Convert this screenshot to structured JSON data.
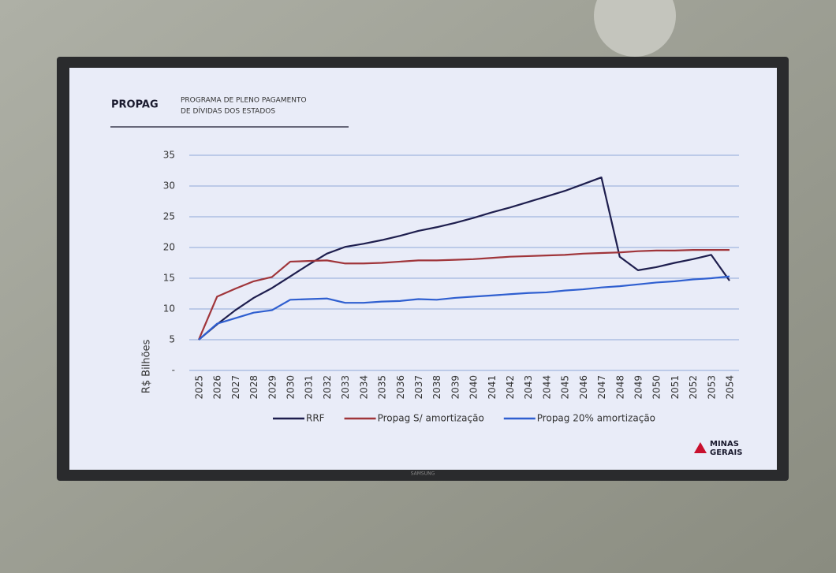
{
  "chart_data": {
    "type": "line",
    "title": "PROPAG",
    "subtitle": [
      "PROGRAMA DE PLENO PAGAMENTO",
      "DE DÍVIDAS DOS ESTADOS"
    ],
    "ylabel": "R$ Bilhões",
    "categories": [
      "2025",
      "2026",
      "2027",
      "2028",
      "2029",
      "2030",
      "2031",
      "2032",
      "2033",
      "2034",
      "2035",
      "2036",
      "2037",
      "2038",
      "2039",
      "2040",
      "2041",
      "2042",
      "2043",
      "2044",
      "2045",
      "2046",
      "2047",
      "2048",
      "2049",
      "2050",
      "2051",
      "2052",
      "2053",
      "2054"
    ],
    "series": [
      {
        "name": "RRF",
        "color": "#1e1e4e",
        "values": [
          5.0,
          7.5,
          9.8,
          11.8,
          13.4,
          15.3,
          17.2,
          19.0,
          20.1,
          20.6,
          21.2,
          21.9,
          22.7,
          23.3,
          24.0,
          24.8,
          25.7,
          26.5,
          27.4,
          28.3,
          29.2,
          30.3,
          31.4,
          18.5,
          16.3,
          16.8,
          17.5,
          18.1,
          18.8,
          14.6
        ]
      },
      {
        "name": "Propag S/ amortização",
        "color": "#a0353a",
        "values": [
          5.0,
          12.0,
          13.3,
          14.5,
          15.2,
          17.7,
          17.8,
          17.9,
          17.4,
          17.4,
          17.5,
          17.7,
          17.9,
          17.9,
          18.0,
          18.1,
          18.3,
          18.5,
          18.6,
          18.7,
          18.8,
          19.0,
          19.1,
          19.2,
          19.4,
          19.5,
          19.5,
          19.6,
          19.6,
          19.6
        ]
      },
      {
        "name": "Propag 20% amortização",
        "color": "#2f5fd0",
        "values": [
          5.0,
          7.6,
          8.5,
          9.4,
          9.8,
          11.5,
          11.6,
          11.7,
          11.0,
          11.0,
          11.2,
          11.3,
          11.6,
          11.5,
          11.8,
          12.0,
          12.2,
          12.4,
          12.6,
          12.7,
          13.0,
          13.2,
          13.5,
          13.7,
          14.0,
          14.3,
          14.5,
          14.8,
          15.0,
          15.3
        ]
      }
    ],
    "ylim": [
      0,
      35
    ],
    "yticks": [
      {
        "value": 0,
        "label": "-"
      },
      5,
      10,
      15,
      20,
      25,
      30,
      35
    ],
    "grid": true,
    "legend": "bottom"
  },
  "logo": [
    "MINAS",
    "GERAIS"
  ],
  "bezel_brand": "SAMSUNG"
}
